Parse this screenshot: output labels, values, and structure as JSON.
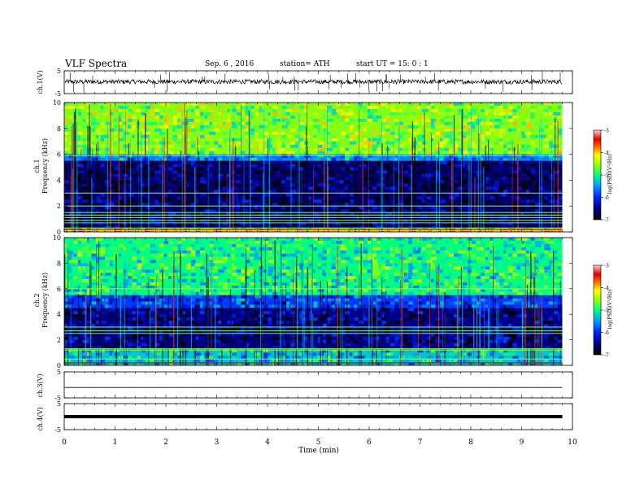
{
  "header": {
    "title": "VLF  Spectra",
    "date": "Sep. 6  , 2016",
    "station": "station= ATH",
    "start": "start  UT  =    15: 0  : 1"
  },
  "colorbar": {
    "label": "log(PSD)(V²/Hz)",
    "ticks": [
      "-3",
      "-4",
      "-5",
      "-6",
      "-7"
    ],
    "min": -7,
    "max": -3
  },
  "panels": {
    "ch1v": {
      "ylabel": "ch.1(V)",
      "ticks": [
        "5",
        "-5"
      ]
    },
    "ch1spec": {
      "ylabel_ch": "ch.1",
      "ylabel_freq": "Frequency  (kHz)",
      "ticks": [
        "10",
        "8",
        "6",
        "4",
        "2",
        "0"
      ]
    },
    "ch2spec": {
      "ylabel_ch": "ch.2",
      "ylabel_freq": "Frequency  (kHz)",
      "ticks": [
        "10",
        "8",
        "6",
        "4",
        "2",
        "0"
      ]
    },
    "ch3v": {
      "ylabel": "ch.3(V)",
      "ticks": [
        "5",
        "-5"
      ]
    },
    "ch4v": {
      "ylabel": "ch.4(V)",
      "ticks": [
        "5",
        "-5"
      ]
    }
  },
  "xaxis": {
    "label": "Time  (min)",
    "ticks": [
      "0",
      "1",
      "2",
      "3",
      "4",
      "5",
      "6",
      "7",
      "8",
      "9",
      "10"
    ],
    "min": 0,
    "max": 10
  },
  "chart_data": [
    {
      "type": "line",
      "panel": "ch.1 waveform",
      "ylabel": "ch.1(V)",
      "xlabel": "Time  (min)",
      "xlim": [
        0,
        10
      ],
      "ylim": [
        -5,
        5
      ],
      "data_end_min": 9.8,
      "note_values": {
        "baseline_v": 0.2,
        "fluctuation_v": 1.0,
        "spike_extent_v": [
          -4.5,
          4.5
        ]
      }
    },
    {
      "type": "heatmap",
      "panel": "ch.1 spectrogram",
      "ylabel": "Frequency  (kHz)",
      "xlim": [
        0,
        10
      ],
      "ylim": [
        0,
        10
      ],
      "data_end_min": 9.8,
      "value_range_log_psd": [
        -7,
        -3
      ],
      "bands_khz": [
        {
          "from": 6.0,
          "to": 10.0,
          "level": -4.6
        },
        {
          "from": 5.5,
          "to": 6.0,
          "level": -5.6
        },
        {
          "from": 0.3,
          "to": 5.5,
          "level": -6.6
        },
        {
          "from": 0.0,
          "to": 0.3,
          "level": -4.0
        }
      ],
      "line_frequencies_khz": [
        5.9,
        3.0,
        2.0,
        1.5,
        1.3,
        1.1,
        0.9,
        0.7,
        0.3,
        0.1
      ]
    },
    {
      "type": "heatmap",
      "panel": "ch.2 spectrogram",
      "ylabel": "Frequency  (kHz)",
      "xlim": [
        0,
        10
      ],
      "ylim": [
        0,
        10
      ],
      "data_end_min": 9.8,
      "value_range_log_psd": [
        -7,
        -3
      ],
      "bands_khz": [
        {
          "from": 5.5,
          "to": 10.0,
          "level": -5.0
        },
        {
          "from": 4.5,
          "to": 5.5,
          "level": -5.9
        },
        {
          "from": 1.3,
          "to": 4.5,
          "level": -6.5
        },
        {
          "from": 0.0,
          "to": 1.3,
          "level": -5.3
        }
      ],
      "line_frequencies_khz": [
        6.0,
        3.0,
        2.7,
        2.5,
        1.3,
        1.2,
        0.5,
        0.2
      ]
    },
    {
      "type": "line",
      "panel": "ch.3 waveform",
      "ylabel": "ch.3(V)",
      "xlim": [
        0,
        10
      ],
      "ylim": [
        -5,
        5
      ],
      "data_end_min": 9.8,
      "note_values": {
        "baseline_v": -1.0
      }
    },
    {
      "type": "line",
      "panel": "ch.4 waveform",
      "ylabel": "ch.4(V)",
      "xlim": [
        0,
        10
      ],
      "ylim": [
        -5,
        5
      ],
      "data_end_min": 9.8,
      "note_values": {
        "baseline_v": 0.0
      }
    }
  ]
}
